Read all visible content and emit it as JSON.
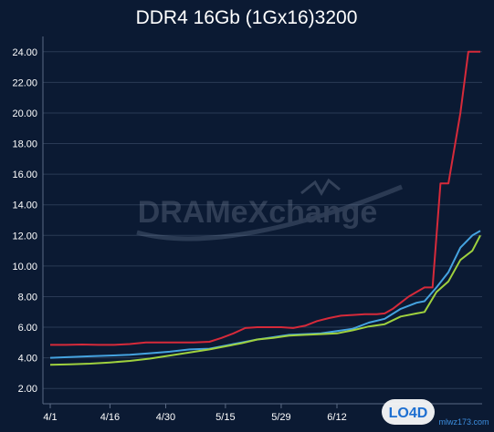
{
  "chart_data": {
    "type": "line",
    "title": "DDR4 16Gb (1Gx16)3200",
    "xlabel": "",
    "ylabel": "",
    "x_ticks": [
      "4/1",
      "4/16",
      "4/30",
      "5/15",
      "5/29",
      "6/12"
    ],
    "y_ticks": [
      "2.00",
      "4.00",
      "6.00",
      "8.00",
      "10.00",
      "12.00",
      "14.00",
      "16.00",
      "18.00",
      "20.00",
      "22.00",
      "24.00"
    ],
    "ylim": [
      1,
      25
    ],
    "grid": true,
    "series": [
      {
        "color": "#d62a3a",
        "points": [
          [
            0,
            4.85
          ],
          [
            4,
            4.85
          ],
          [
            8,
            4.87
          ],
          [
            12,
            4.85
          ],
          [
            16,
            4.85
          ],
          [
            20,
            4.9
          ],
          [
            24,
            5.0
          ],
          [
            28,
            5.0
          ],
          [
            32,
            5.0
          ],
          [
            36,
            5.0
          ],
          [
            40,
            5.05
          ],
          [
            43,
            5.3
          ],
          [
            46,
            5.6
          ],
          [
            49,
            5.95
          ],
          [
            52,
            6.0
          ],
          [
            55,
            6.0
          ],
          [
            58,
            6.0
          ],
          [
            61,
            5.95
          ],
          [
            64,
            6.1
          ],
          [
            67,
            6.4
          ],
          [
            70,
            6.6
          ],
          [
            73,
            6.75
          ],
          [
            76,
            6.8
          ],
          [
            79,
            6.85
          ],
          [
            82,
            6.85
          ],
          [
            84,
            6.9
          ],
          [
            86,
            7.2
          ],
          [
            88,
            7.6
          ],
          [
            90,
            8.0
          ],
          [
            92,
            8.3
          ],
          [
            94,
            8.6
          ],
          [
            96,
            8.6
          ],
          [
            98,
            15.4
          ],
          [
            100,
            15.4
          ],
          [
            103,
            20.0
          ],
          [
            105,
            24.0
          ],
          [
            108,
            24.0
          ]
        ]
      },
      {
        "color": "#45a3e0",
        "points": [
          [
            0,
            4.0
          ],
          [
            5,
            4.05
          ],
          [
            10,
            4.1
          ],
          [
            15,
            4.15
          ],
          [
            20,
            4.2
          ],
          [
            25,
            4.3
          ],
          [
            30,
            4.4
          ],
          [
            35,
            4.55
          ],
          [
            40,
            4.6
          ],
          [
            44,
            4.8
          ],
          [
            48,
            5.0
          ],
          [
            52,
            5.2
          ],
          [
            56,
            5.35
          ],
          [
            60,
            5.5
          ],
          [
            64,
            5.55
          ],
          [
            68,
            5.6
          ],
          [
            72,
            5.75
          ],
          [
            76,
            5.9
          ],
          [
            80,
            6.3
          ],
          [
            84,
            6.55
          ],
          [
            88,
            7.2
          ],
          [
            92,
            7.6
          ],
          [
            94,
            7.7
          ],
          [
            97,
            8.6
          ],
          [
            100,
            9.6
          ],
          [
            103,
            11.2
          ],
          [
            106,
            12.0
          ],
          [
            108,
            12.3
          ]
        ]
      },
      {
        "color": "#9fd13e",
        "points": [
          [
            0,
            3.55
          ],
          [
            5,
            3.58
          ],
          [
            10,
            3.62
          ],
          [
            15,
            3.7
          ],
          [
            20,
            3.8
          ],
          [
            25,
            3.95
          ],
          [
            30,
            4.15
          ],
          [
            35,
            4.35
          ],
          [
            40,
            4.55
          ],
          [
            44,
            4.75
          ],
          [
            48,
            4.95
          ],
          [
            52,
            5.2
          ],
          [
            56,
            5.3
          ],
          [
            60,
            5.45
          ],
          [
            64,
            5.5
          ],
          [
            68,
            5.55
          ],
          [
            72,
            5.6
          ],
          [
            76,
            5.8
          ],
          [
            80,
            6.05
          ],
          [
            84,
            6.2
          ],
          [
            88,
            6.7
          ],
          [
            92,
            6.9
          ],
          [
            94,
            7.0
          ],
          [
            97,
            8.3
          ],
          [
            100,
            9.0
          ],
          [
            103,
            10.4
          ],
          [
            106,
            11.0
          ],
          [
            108,
            12.0
          ]
        ]
      }
    ],
    "watermark": "DRAMeXchange",
    "corner_logo": {
      "text": "LO4D",
      "site": "mlwz173.com"
    }
  }
}
